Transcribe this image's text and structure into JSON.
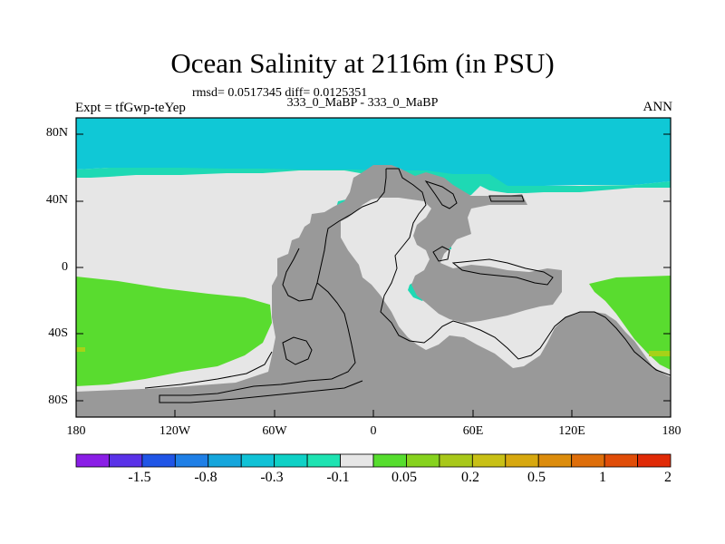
{
  "header": {
    "title": "Ocean Salinity at 2116m (in PSU)",
    "stats": "rmsd= 0.0517345 diff= 0.0125351",
    "subtitle": "333_0_MaBP - 333_0_MaBP",
    "expt": "Expt = tfGwp-teYep",
    "season": "ANN"
  },
  "axes": {
    "x_ticks": [
      "180",
      "120W",
      "60W",
      "0",
      "60E",
      "120E",
      "180"
    ],
    "y_ticks": [
      "80N",
      "40N",
      "0",
      "40S",
      "80S"
    ]
  },
  "colorbar": {
    "labels": [
      "-1.5",
      "-0.8",
      "-0.3",
      "-0.1",
      "0.05",
      "0.2",
      "0.5",
      "1",
      "2"
    ],
    "colors": [
      "#8a1ee6",
      "#5a32e8",
      "#2055e6",
      "#1f7fe6",
      "#16a6dc",
      "#10c2d6",
      "#0fd1c6",
      "#1ee3b2",
      "#e6e6e6",
      "#56dd2e",
      "#86d21e",
      "#a8c81a",
      "#c8c016",
      "#d7a80f",
      "#dc8c0c",
      "#de6e0a",
      "#e04d08",
      "#e02a06"
    ]
  },
  "map_colors": {
    "land": "#999999",
    "polar_cyan": "#10c8d6",
    "teal": "#1ed9b4",
    "neutral": "#e6e6e6",
    "green": "#59dc2f",
    "yellow_green": "#a6d218"
  }
}
